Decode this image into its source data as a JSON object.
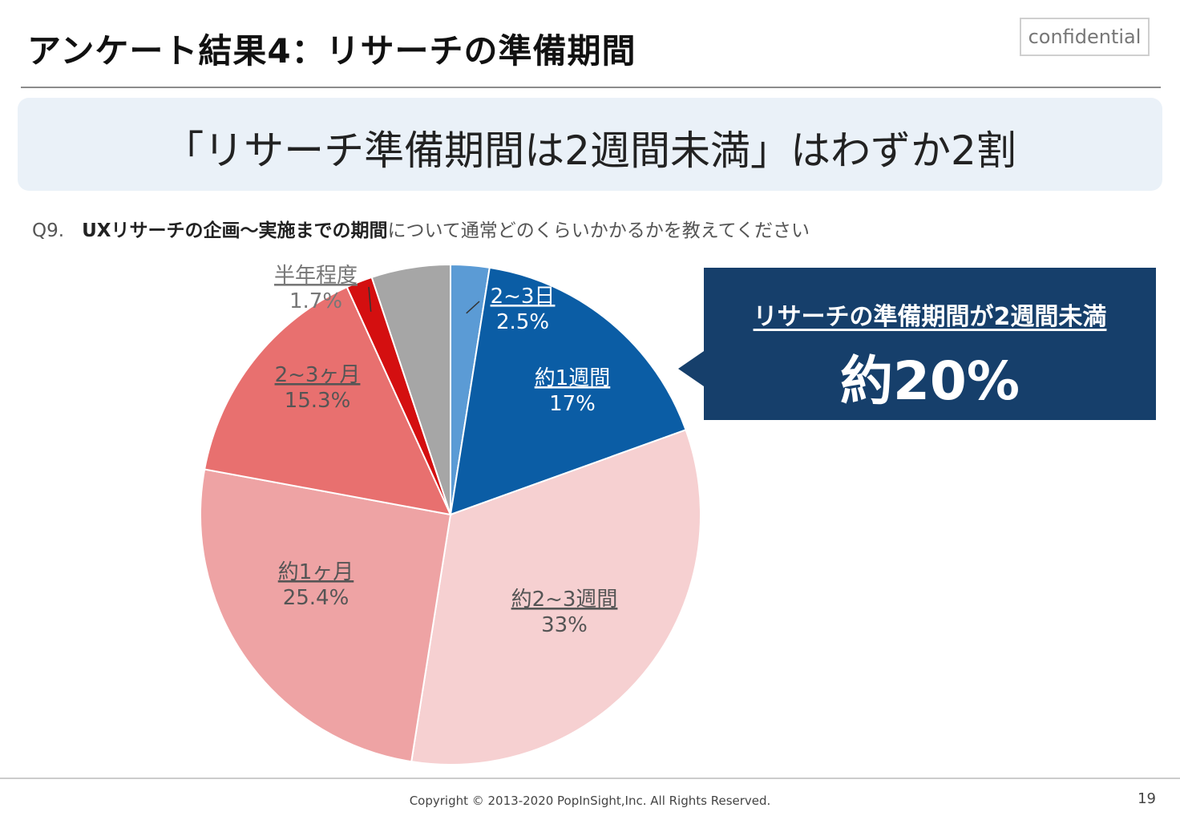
{
  "slide": {
    "title": "アンケート結果4：リサーチの準備期間",
    "confidential_label": "confidential",
    "headline": "「リサーチ準備期間は2週間未満」はわずか2割"
  },
  "question": {
    "number": "Q9.",
    "emphasis": "UXリサーチの企画～実施までの期間",
    "rest": "について通常どのくらいかかるかを教えてください"
  },
  "callout": {
    "subtitle": "リサーチの準備期間が2週間未満",
    "value": "約20%"
  },
  "footer": {
    "copyright": "Copyright © 2013-2020  PopInSight,Inc.  All Rights Reserved.",
    "page_number": "19"
  },
  "chart_data": {
    "type": "pie",
    "title": "",
    "start_angle": "12 o'clock",
    "direction": "clockwise",
    "slices": [
      {
        "name": "2~3日",
        "value": 2.5,
        "value_label": "2.5%",
        "color": "#5b9bd5",
        "label_color": "#ffffff"
      },
      {
        "name": "約1週間",
        "value": 17,
        "value_label": "17%",
        "color": "#0b5da5",
        "label_color": "#ffffff"
      },
      {
        "name": "約2~3週間",
        "value": 33,
        "value_label": "33%",
        "color": "#f6d0d1",
        "label_color": "#555555"
      },
      {
        "name": "約1ヶ月",
        "value": 25.4,
        "value_label": "25.4%",
        "color": "#eea3a4",
        "label_color": "#555555"
      },
      {
        "name": "2~3ヶ月",
        "value": 15.3,
        "value_label": "15.3%",
        "color": "#e8706f",
        "label_color": "#555555"
      },
      {
        "name": "半年程度",
        "value": 1.7,
        "value_label": "1.7%",
        "color": "#d40f10",
        "label_color": "#777777"
      },
      {
        "name": "",
        "value": 5.1,
        "value_label": "",
        "color": "#a6a6a6",
        "label_color": "#777777"
      }
    ]
  }
}
